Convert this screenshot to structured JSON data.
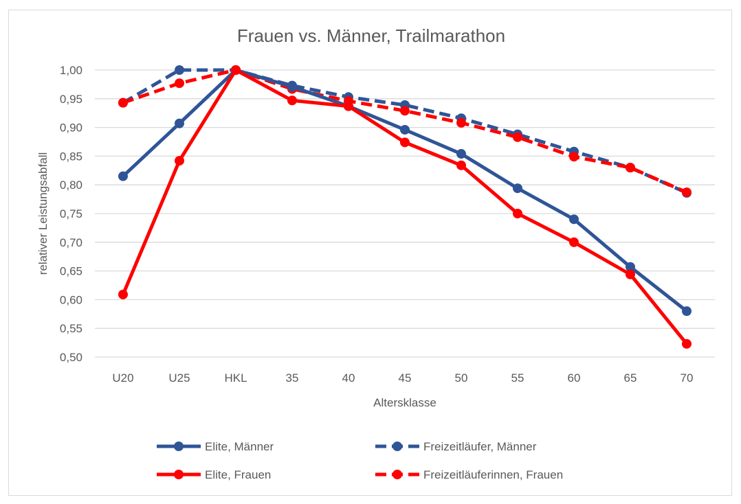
{
  "chart_data": {
    "type": "line",
    "title": "Frauen vs. Männer, Trailmarathon",
    "xlabel": "Altersklasse",
    "ylabel": "relativer Leistungsabfall",
    "ylim": [
      0.5,
      1.0
    ],
    "yticks": [
      "0,50",
      "0,55",
      "0,60",
      "0,65",
      "0,70",
      "0,75",
      "0,80",
      "0,85",
      "0,90",
      "0,95",
      "1,00"
    ],
    "grid": true,
    "legend_position": "bottom",
    "categories": [
      "U20",
      "U25",
      "HKL",
      "35",
      "40",
      "45",
      "50",
      "55",
      "60",
      "65",
      "70"
    ],
    "series": [
      {
        "name": "Elite, Männer",
        "color": "#2F5597",
        "dashed": false,
        "values": [
          0.815,
          0.907,
          1.0,
          0.971,
          0.937,
          0.896,
          0.854,
          0.794,
          0.74,
          0.657,
          0.58
        ]
      },
      {
        "name": "Freizeitläufer, Männer",
        "color": "#2F5597",
        "dashed": true,
        "values": [
          0.943,
          1.0,
          1.0,
          0.973,
          0.953,
          0.939,
          0.916,
          0.888,
          0.858,
          0.83,
          0.786
        ]
      },
      {
        "name": "Elite, Frauen",
        "color": "#FF0000",
        "dashed": false,
        "values": [
          0.609,
          0.842,
          1.0,
          0.947,
          0.937,
          0.874,
          0.834,
          0.75,
          0.7,
          0.644,
          0.523
        ]
      },
      {
        "name": "Freizeitläuferinnen, Frauen",
        "color": "#FF0000",
        "dashed": true,
        "values": [
          0.943,
          0.977,
          1.0,
          0.967,
          0.946,
          0.929,
          0.908,
          0.883,
          0.849,
          0.83,
          0.787
        ]
      }
    ]
  }
}
